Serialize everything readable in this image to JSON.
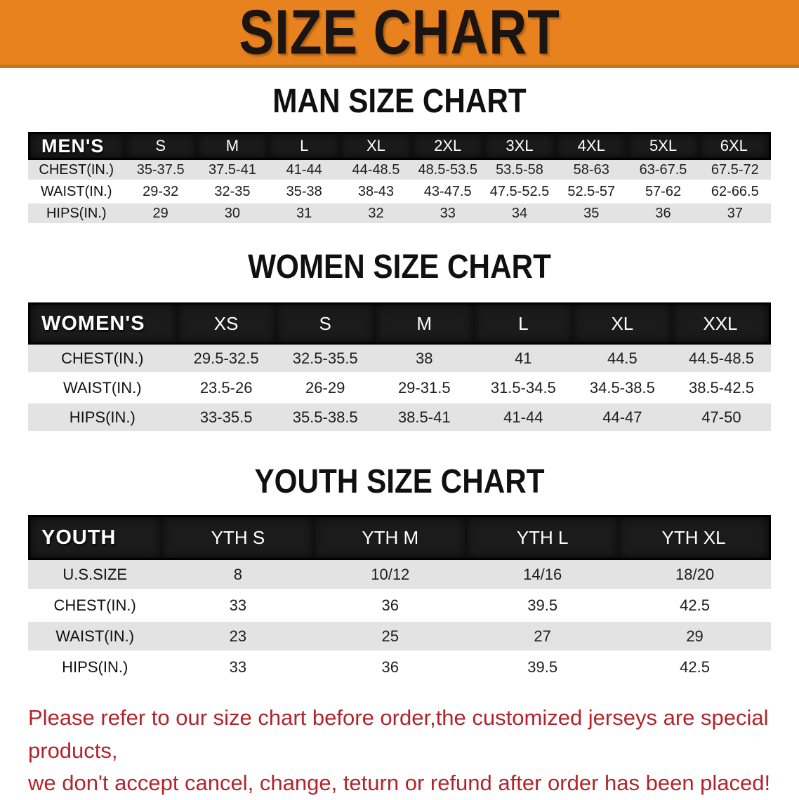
{
  "banner": {
    "title": "SIZE CHART"
  },
  "colors": {
    "banner_bg": "#e8821e",
    "banner_edge": "#c1761f",
    "header_bar": "#1b1b1b",
    "row_stripe": "#e3e3e3",
    "note_red": "#b2242a"
  },
  "sections": [
    {
      "title": "MAN SIZE CHART",
      "label": "MEN'S",
      "columns": [
        "S",
        "M",
        "L",
        "XL",
        "2XL",
        "3XL",
        "4XL",
        "5XL",
        "6XL"
      ],
      "rows": [
        {
          "label": "CHEST(IN.)",
          "values": [
            "35-37.5",
            "37.5-41",
            "41-44",
            "44-48.5",
            "48.5-53.5",
            "53.5-58",
            "58-63",
            "63-67.5",
            "67.5-72"
          ]
        },
        {
          "label": "WAIST(IN.)",
          "values": [
            "29-32",
            "32-35",
            "35-38",
            "38-43",
            "43-47.5",
            "47.5-52.5",
            "52.5-57",
            "57-62",
            "62-66.5"
          ]
        },
        {
          "label": "HIPS(IN.)",
          "values": [
            "29",
            "30",
            "31",
            "32",
            "33",
            "34",
            "35",
            "36",
            "37"
          ]
        }
      ]
    },
    {
      "title": "WOMEN SIZE CHART",
      "label": "WOMEN'S",
      "columns": [
        "XS",
        "S",
        "M",
        "L",
        "XL",
        "XXL"
      ],
      "rows": [
        {
          "label": "CHEST(IN.)",
          "values": [
            "29.5-32.5",
            "32.5-35.5",
            "38",
            "41",
            "44.5",
            "44.5-48.5"
          ]
        },
        {
          "label": "WAIST(IN.)",
          "values": [
            "23.5-26",
            "26-29",
            "29-31.5",
            "31.5-34.5",
            "34.5-38.5",
            "38.5-42.5"
          ]
        },
        {
          "label": "HIPS(IN.)",
          "values": [
            "33-35.5",
            "35.5-38.5",
            "38.5-41",
            "41-44",
            "44-47",
            "47-50"
          ]
        }
      ]
    },
    {
      "title": "YOUTH SIZE CHART",
      "label": "YOUTH",
      "columns": [
        "YTH S",
        "YTH M",
        "YTH L",
        "YTH XL"
      ],
      "rows": [
        {
          "label": "U.S.SIZE",
          "values": [
            "8",
            "10/12",
            "14/16",
            "18/20"
          ]
        },
        {
          "label": "CHEST(IN.)",
          "values": [
            "33",
            "36",
            "39.5",
            "42.5"
          ]
        },
        {
          "label": "WAIST(IN.)",
          "values": [
            "23",
            "25",
            "27",
            "29"
          ]
        },
        {
          "label": "HIPS(IN.)",
          "values": [
            "33",
            "36",
            "39.5",
            "42.5"
          ]
        }
      ]
    }
  ],
  "footer": {
    "lines": [
      "Please refer to our size chart before order,the customized jerseys are special products,",
      "we don't accept cancel, change, teturn or refund after order has been placed!"
    ]
  }
}
